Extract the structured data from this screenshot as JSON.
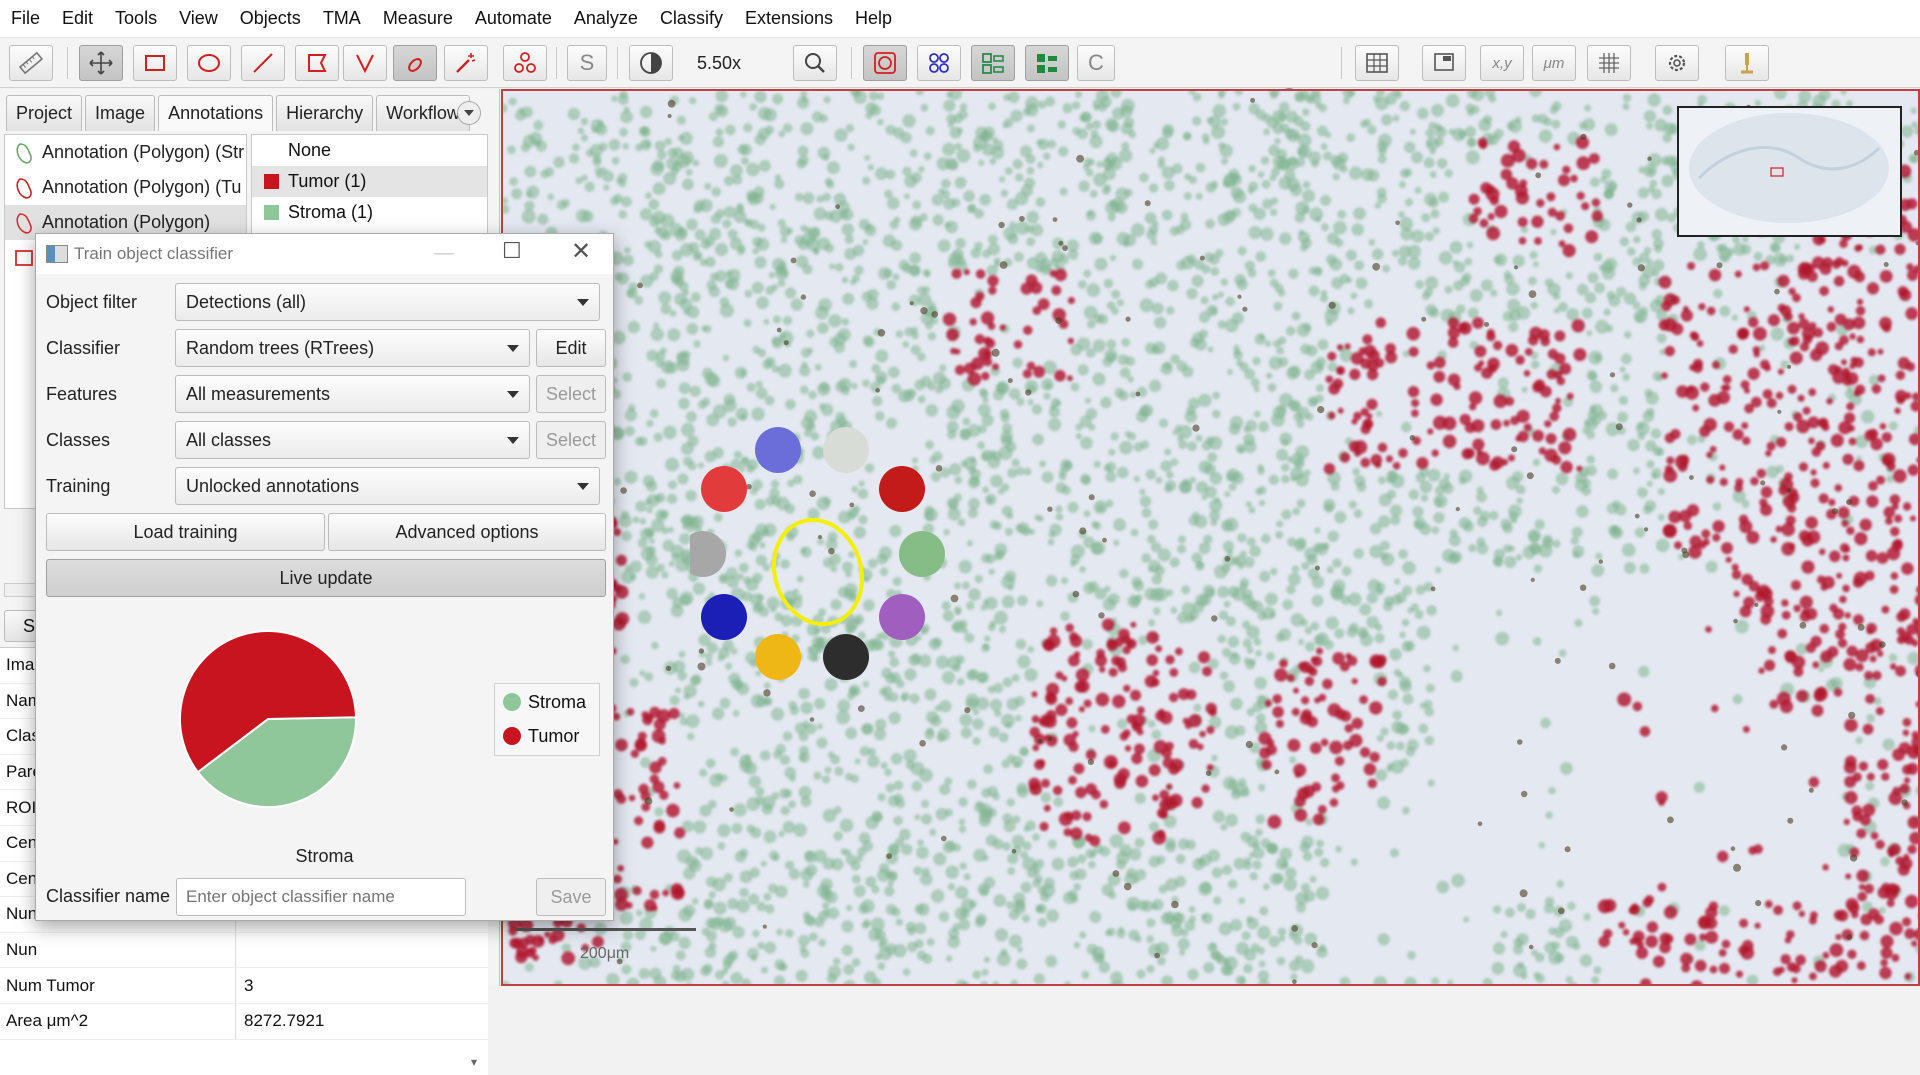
{
  "menu": [
    "File",
    "Edit",
    "Tools",
    "View",
    "Objects",
    "TMA",
    "Measure",
    "Automate",
    "Analyze",
    "Classify",
    "Extensions",
    "Help"
  ],
  "toolbar": {
    "zoom": "5.50x",
    "s_label": "S",
    "c_label": "C",
    "xy_label": "x,y",
    "um_label": "μm"
  },
  "left": {
    "tabs": [
      "Project",
      "Image",
      "Annotations",
      "Hierarchy",
      "Workflow"
    ],
    "annotations": [
      {
        "label": "Annotation (Polygon) (Str",
        "color": "#6aa86a"
      },
      {
        "label": "Annotation (Polygon) (Tu",
        "color": "#c02020"
      },
      {
        "label": "Annotation (Polygon)",
        "color": "#d03030"
      },
      {
        "label": "",
        "color": "#d03030"
      }
    ],
    "classes": [
      {
        "label": "None",
        "color": ""
      },
      {
        "label": "Tumor (1)",
        "color": "#c8141e"
      },
      {
        "label": "Stroma (1)",
        "color": "#8fc79a"
      }
    ],
    "s_button": "S",
    "properties": [
      {
        "k": "Ima",
        "v": ""
      },
      {
        "k": "Nam",
        "v": ""
      },
      {
        "k": "Clas",
        "v": ""
      },
      {
        "k": "Pare",
        "v": ""
      },
      {
        "k": "ROI",
        "v": ""
      },
      {
        "k": "Cen",
        "v": ""
      },
      {
        "k": "Cen",
        "v": ""
      },
      {
        "k": "Nun",
        "v": ""
      },
      {
        "k": "Nun",
        "v": ""
      },
      {
        "k": "Num Tumor",
        "v": "3"
      },
      {
        "k": "Area μm^2",
        "v": "8272.7921"
      }
    ]
  },
  "dialog": {
    "title": "Train object classifier",
    "rows": [
      {
        "label": "Object filter",
        "value": "Detections (all)"
      },
      {
        "label": "Classifier",
        "value": "Random trees (RTrees)",
        "button": "Edit"
      },
      {
        "label": "Features",
        "value": "All measurements",
        "button": "Select"
      },
      {
        "label": "Classes",
        "value": "All classes",
        "button": "Select"
      },
      {
        "label": "Training",
        "value": "Unlocked annotations"
      }
    ],
    "load_training": "Load training",
    "advanced_options": "Advanced options",
    "live_update": "Live update",
    "legend": [
      {
        "label": "Stroma",
        "color": "#8fc79a"
      },
      {
        "label": "Tumor",
        "color": "#c8141e"
      }
    ],
    "pie_label": "Stroma",
    "classifier_name_label": "Classifier name",
    "classifier_name_placeholder": "Enter object classifier name",
    "save": "Save"
  },
  "viewer": {
    "scale_label": "200μm"
  },
  "chart_data": {
    "type": "pie",
    "categories": [
      "Tumor",
      "Stroma"
    ],
    "values": [
      60,
      40
    ],
    "colors": [
      "#c8141e",
      "#8fc79a"
    ]
  }
}
